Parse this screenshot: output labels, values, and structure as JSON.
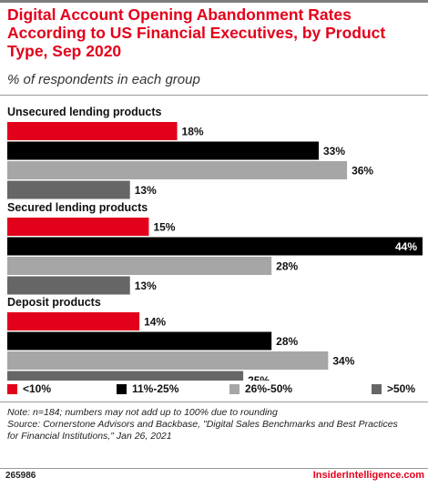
{
  "title": "Digital Account Opening Abandonment Rates According to US Financial Executives, by Product Type, Sep 2020",
  "subtitle": "% of respondents in each group",
  "chart_data": {
    "type": "bar",
    "orientation": "horizontal",
    "groups": [
      "Unsecured lending products",
      "Secured lending products",
      "Deposit products"
    ],
    "series": [
      {
        "name": "<10%",
        "values": [
          18,
          15,
          14
        ],
        "color": "#e3001b"
      },
      {
        "name": "11%-25%",
        "values": [
          33,
          44,
          28
        ],
        "color": "#000000"
      },
      {
        "name": "26%-50%",
        "values": [
          36,
          28,
          34
        ],
        "color": "#a6a6a6"
      },
      {
        "name": ">50%",
        "values": [
          13,
          13,
          25
        ],
        "color": "#666666"
      }
    ],
    "value_suffix": "%",
    "xlim": [
      0,
      44
    ],
    "grid": false,
    "legend_position": "bottom"
  },
  "legend": {
    "items": [
      "<10%",
      "11%-25%",
      "26%-50%",
      ">50%"
    ]
  },
  "notes": {
    "line1": "Note: n=184; numbers may not add up to 100% due to rounding",
    "line2": "Source: Cornerstone Advisors and Backbase, \"Digital Sales Benchmarks and Best Practices",
    "line3": "for Financial Institutions,\" Jan 26, 2021"
  },
  "footer": {
    "chart_id": "265986",
    "brand": "InsiderIntelligence.com"
  }
}
